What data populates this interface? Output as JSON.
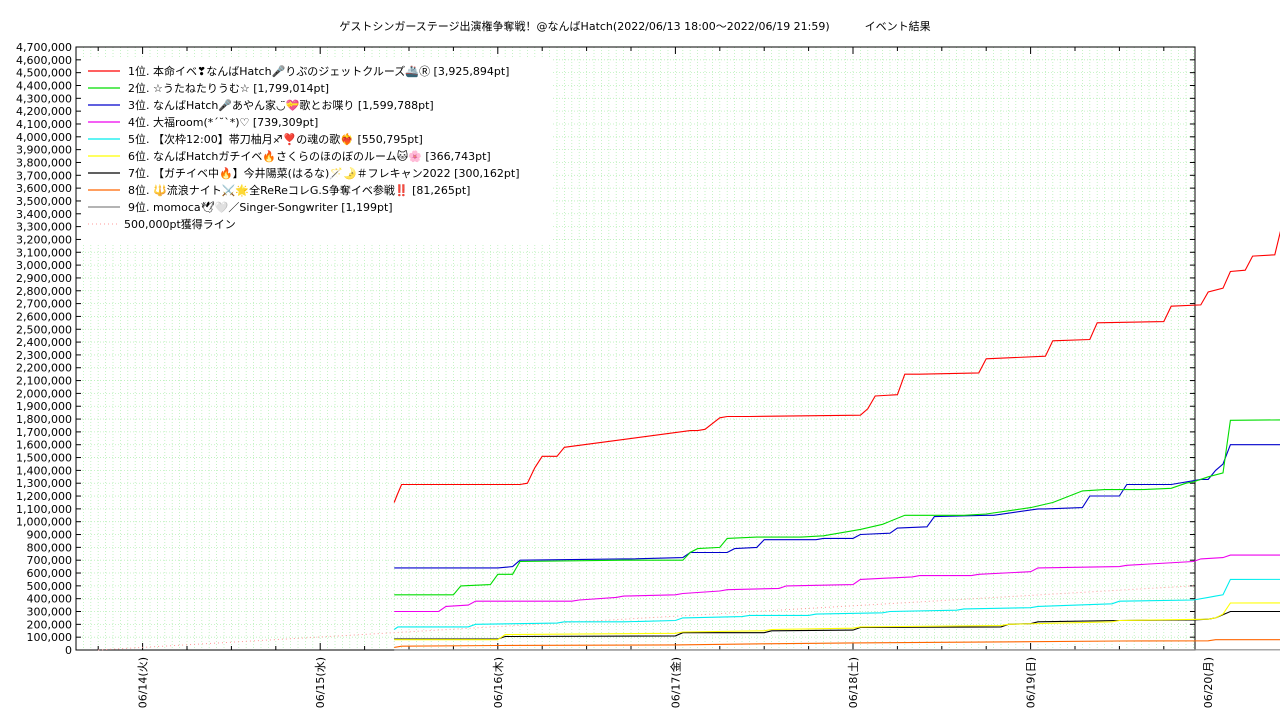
{
  "chart_data": {
    "type": "line",
    "title": "ゲストシンガーステージ出演権争奪戦！@なんばHatch(2022/06/13 18:00～2022/06/19 21:59)          イベント結果",
    "xlabel": "",
    "ylabel": "",
    "ylim": [
      0,
      4700000
    ],
    "xlim": [
      "06/13 15:00",
      "06/20 00:00"
    ],
    "y_ticks": [
      "0",
      "100,000",
      "200,000",
      "300,000",
      "400,000",
      "500,000",
      "600,000",
      "700,000",
      "800,000",
      "900,000",
      "1,000,000",
      "1,100,000",
      "1,200,000",
      "1,300,000",
      "1,400,000",
      "1,500,000",
      "1,600,000",
      "1,700,000",
      "1,800,000",
      "1,900,000",
      "2,000,000",
      "2,100,000",
      "2,200,000",
      "2,300,000",
      "2,400,000",
      "2,500,000",
      "2,600,000",
      "2,700,000",
      "2,800,000",
      "2,900,000",
      "3,000,000",
      "3,100,000",
      "3,200,000",
      "3,300,000",
      "3,400,000",
      "3,500,000",
      "3,600,000",
      "3,700,000",
      "3,800,000",
      "3,900,000",
      "4,000,000",
      "4,100,000",
      "4,200,000",
      "4,300,000",
      "4,400,000",
      "4,500,000",
      "4,600,000",
      "4,700,000"
    ],
    "x_ticks": [
      "06/14(火)",
      "06/15(水)",
      "06/16(木)",
      "06/17(金)",
      "06/18(土)",
      "06/19(日)",
      "06/20(月)"
    ],
    "grid": true,
    "legend_position": "top-left",
    "series": [
      {
        "name": "1位. 本命イベ❣なんばHatch🎤りぷのジェットクルーズ🚢Ⓡ [3,925,894pt]",
        "color": "#ff0000",
        "x": [
          "06/15 10:00",
          "06/15 10:20",
          "06/15 11:00",
          "06/16 03:00",
          "06/16 04:00",
          "06/16 05:00",
          "06/16 06:00",
          "06/16 08:00",
          "06/16 09:00",
          "06/17 02:00",
          "06/17 03:00",
          "06/17 04:00",
          "06/17 06:00",
          "06/17 07:00",
          "06/17 10:00",
          "06/18 01:00",
          "06/18 02:00",
          "06/18 03:00",
          "06/18 06:00",
          "06/18 07:00",
          "06/18 08:00",
          "06/18 09:00",
          "06/18 17:00",
          "06/18 18:00",
          "06/19 02:00",
          "06/19 03:00",
          "06/19 08:00",
          "06/19 09:00",
          "06/19 18:00",
          "06/19 19:00",
          "06/19 23:00",
          "06/20 00:00",
          "06/20 02:00",
          "06/20 03:00",
          "06/20 05:00",
          "06/20 06:00",
          "06/20 09:00",
          "06/20 10:00",
          "06/20 11:00",
          "06/20 21:59"
        ],
        "y": [
          1150000,
          1200000,
          1290000,
          1290000,
          1300000,
          1420000,
          1510000,
          1510000,
          1580000,
          1710000,
          1710000,
          1720000,
          1810000,
          1820000,
          1820000,
          1830000,
          1880000,
          1980000,
          1990000,
          2150000,
          2150000,
          2150000,
          2160000,
          2270000,
          2290000,
          2410000,
          2420000,
          2550000,
          2560000,
          2680000,
          2690000,
          2790000,
          2820000,
          2950000,
          2960000,
          3070000,
          3080000,
          3320000,
          3330000,
          3925894
        ]
      },
      {
        "name": "2位. ☆うたねたりうむ☆ [1,799,014pt]",
        "color": "#00dd00",
        "x": [
          "06/15 10:00",
          "06/15 18:00",
          "06/15 19:00",
          "06/15 23:00",
          "06/16 00:00",
          "06/16 02:00",
          "06/16 03:00",
          "06/16 17:00",
          "06/17 01:00",
          "06/17 02:00",
          "06/17 03:00",
          "06/17 06:00",
          "06/17 07:00",
          "06/17 11:00",
          "06/17 12:00",
          "06/17 17:00",
          "06/17 20:00",
          "06/18 01:00",
          "06/18 04:00",
          "06/18 07:00",
          "06/18 10:00",
          "06/18 15:00",
          "06/18 18:00",
          "06/19 00:00",
          "06/19 03:00",
          "06/19 07:00",
          "06/19 10:00",
          "06/19 15:00",
          "06/19 19:00",
          "06/19 21:00",
          "06/19 22:00",
          "06/20 00:00",
          "06/20 02:00",
          "06/20 03:00",
          "06/20 21:59"
        ],
        "y": [
          430000,
          430000,
          500000,
          510000,
          590000,
          590000,
          690000,
          700000,
          700000,
          760000,
          790000,
          800000,
          870000,
          880000,
          880000,
          880000,
          890000,
          940000,
          980000,
          1050000,
          1050000,
          1050000,
          1060000,
          1110000,
          1150000,
          1240000,
          1250000,
          1250000,
          1260000,
          1300000,
          1310000,
          1350000,
          1380000,
          1790000,
          1799014
        ]
      },
      {
        "name": "3位. なんばHatch🎤あやん家◡̈💝歌とお喋り [1,599,788pt]",
        "color": "#0000cc",
        "x": [
          "06/15 10:00",
          "06/16 00:00",
          "06/16 02:00",
          "06/16 03:00",
          "06/16 17:00",
          "06/16 18:00",
          "06/17 01:00",
          "06/17 02:00",
          "06/17 07:00",
          "06/17 08:00",
          "06/17 11:00",
          "06/17 12:00",
          "06/17 19:00",
          "06/17 20:00",
          "06/18 00:00",
          "06/18 01:00",
          "06/18 05:00",
          "06/18 06:00",
          "06/18 10:00",
          "06/18 11:00",
          "06/18 18:00",
          "06/18 19:00",
          "06/19 01:00",
          "06/19 02:00",
          "06/19 07:00",
          "06/19 08:00",
          "06/19 12:00",
          "06/19 13:00",
          "06/19 18:00",
          "06/19 19:00",
          "06/19 23:00",
          "06/20 00:00",
          "06/20 01:00",
          "06/20 02:00",
          "06/20 03:00",
          "06/20 21:59"
        ],
        "y": [
          640000,
          640000,
          650000,
          700000,
          710000,
          710000,
          720000,
          760000,
          760000,
          790000,
          800000,
          860000,
          860000,
          870000,
          870000,
          900000,
          910000,
          950000,
          960000,
          1040000,
          1050000,
          1050000,
          1100000,
          1100000,
          1110000,
          1200000,
          1200000,
          1290000,
          1290000,
          1290000,
          1330000,
          1330000,
          1400000,
          1450000,
          1600000,
          1599788
        ]
      },
      {
        "name": "4位. 大福room(*´˘`*)♡ [739,309pt]",
        "color": "#ee00ee",
        "x": [
          "06/15 10:00",
          "06/15 16:00",
          "06/15 17:00",
          "06/15 20:00",
          "06/15 21:00",
          "06/16 10:00",
          "06/16 11:00",
          "06/16 16:00",
          "06/16 17:00",
          "06/17 00:00",
          "06/17 01:00",
          "06/17 06:00",
          "06/17 07:00",
          "06/17 14:00",
          "06/17 15:00",
          "06/18 00:00",
          "06/18 01:00",
          "06/18 08:00",
          "06/18 09:00",
          "06/18 16:00",
          "06/18 17:00",
          "06/19 00:00",
          "06/19 01:00",
          "06/19 12:00",
          "06/19 13:00",
          "06/19 22:00",
          "06/19 23:00",
          "06/20 02:00",
          "06/20 03:00",
          "06/20 21:59"
        ],
        "y": [
          300000,
          300000,
          340000,
          350000,
          380000,
          380000,
          390000,
          410000,
          420000,
          430000,
          440000,
          460000,
          470000,
          480000,
          500000,
          510000,
          550000,
          570000,
          580000,
          580000,
          590000,
          610000,
          640000,
          650000,
          660000,
          690000,
          710000,
          720000,
          740000,
          739309
        ]
      },
      {
        "name": "5位. 【次枠12:00】帯刀柚月♐❣️の魂の歌❤️‍🔥 [550,795pt]",
        "color": "#00eeee",
        "x": [
          "06/15 10:00",
          "06/15 10:30",
          "06/15 20:00",
          "06/15 21:00",
          "06/16 08:00",
          "06/16 09:00",
          "06/16 17:00",
          "06/17 00:00",
          "06/17 01:00",
          "06/17 09:00",
          "06/17 10:00",
          "06/17 18:00",
          "06/17 19:00",
          "06/18 04:00",
          "06/18 05:00",
          "06/18 14:00",
          "06/18 15:00",
          "06/19 00:00",
          "06/19 01:00",
          "06/19 11:00",
          "06/19 12:00",
          "06/19 22:00",
          "06/20 00:00",
          "06/20 01:00",
          "06/20 02:00",
          "06/20 03:00",
          "06/20 21:59"
        ],
        "y": [
          160000,
          180000,
          180000,
          200000,
          210000,
          220000,
          220000,
          230000,
          250000,
          260000,
          270000,
          270000,
          280000,
          290000,
          300000,
          310000,
          320000,
          330000,
          340000,
          360000,
          380000,
          390000,
          410000,
          420000,
          430000,
          550000,
          550795
        ]
      },
      {
        "name": "6位. なんばHatchガチイベ🔥さくらのほのぼのルーム🐱🌸 [366,743pt]",
        "color": "#ffff00",
        "x": [
          "06/15 10:00",
          "06/16 00:00",
          "06/16 01:00",
          "06/17 00:00",
          "06/17 01:00",
          "06/17 12:00",
          "06/17 13:00",
          "06/18 00:00",
          "06/18 01:00",
          "06/18 20:00",
          "06/18 21:00",
          "06/19 11:00",
          "06/19 12:00",
          "06/20 00:00",
          "06/20 01:00",
          "06/20 02:00",
          "06/20 03:00",
          "06/20 21:59"
        ],
        "y": [
          80000,
          80000,
          120000,
          130000,
          140000,
          150000,
          160000,
          170000,
          180000,
          190000,
          200000,
          220000,
          230000,
          240000,
          250000,
          280000,
          366000,
          366743
        ]
      },
      {
        "name": "7位. 【ガチイベ中🔥】今井陽菜(はるな)🪄🌛＃フレキャン2022 [300,162pt]",
        "color": "#000000",
        "x": [
          "06/15 10:00",
          "06/16 00:00",
          "06/16 01:00",
          "06/17 00:00",
          "06/17 01:00",
          "06/17 12:00",
          "06/17 13:00",
          "06/18 00:00",
          "06/18 01:00",
          "06/18 20:00",
          "06/18 21:00",
          "06/19 00:00",
          "06/19 01:00",
          "06/19 12:00",
          "06/19 22:00",
          "06/20 00:00",
          "06/20 01:00",
          "06/20 03:00",
          "06/20 21:59"
        ],
        "y": [
          85000,
          85000,
          105000,
          110000,
          135000,
          135000,
          150000,
          155000,
          175000,
          180000,
          200000,
          205000,
          220000,
          230000,
          235000,
          240000,
          250000,
          300000,
          300162
        ]
      },
      {
        "name": "8位. 🔱流浪ナイト⚔️🌟全ReReコレG.S争奪イベ参戦‼️ [81,265pt]",
        "color": "#ff6600",
        "x": [
          "06/15 10:00",
          "06/15 11:00",
          "06/16 00:00",
          "06/17 00:00",
          "06/17 12:00",
          "06/18 00:00",
          "06/18 12:00",
          "06/19 00:00",
          "06/19 12:00",
          "06/20 00:00",
          "06/20 01:00",
          "06/20 21:59"
        ],
        "y": [
          20000,
          30000,
          35000,
          40000,
          48000,
          55000,
          60000,
          65000,
          70000,
          72000,
          80000,
          81265
        ]
      },
      {
        "name": "9位. momoca🕊🤍／Singer-Songwriter [1,199pt]",
        "color": "#888888",
        "x": [
          "06/15 10:00",
          "06/20 21:59"
        ],
        "y": [
          1199,
          1199
        ]
      }
    ],
    "reference_line": {
      "name": "500,000pt獲得ライン",
      "color": "#ff9999",
      "x": [
        "06/13 18:00",
        "06/19 21:59"
      ],
      "y": [
        0,
        500000
      ]
    }
  }
}
